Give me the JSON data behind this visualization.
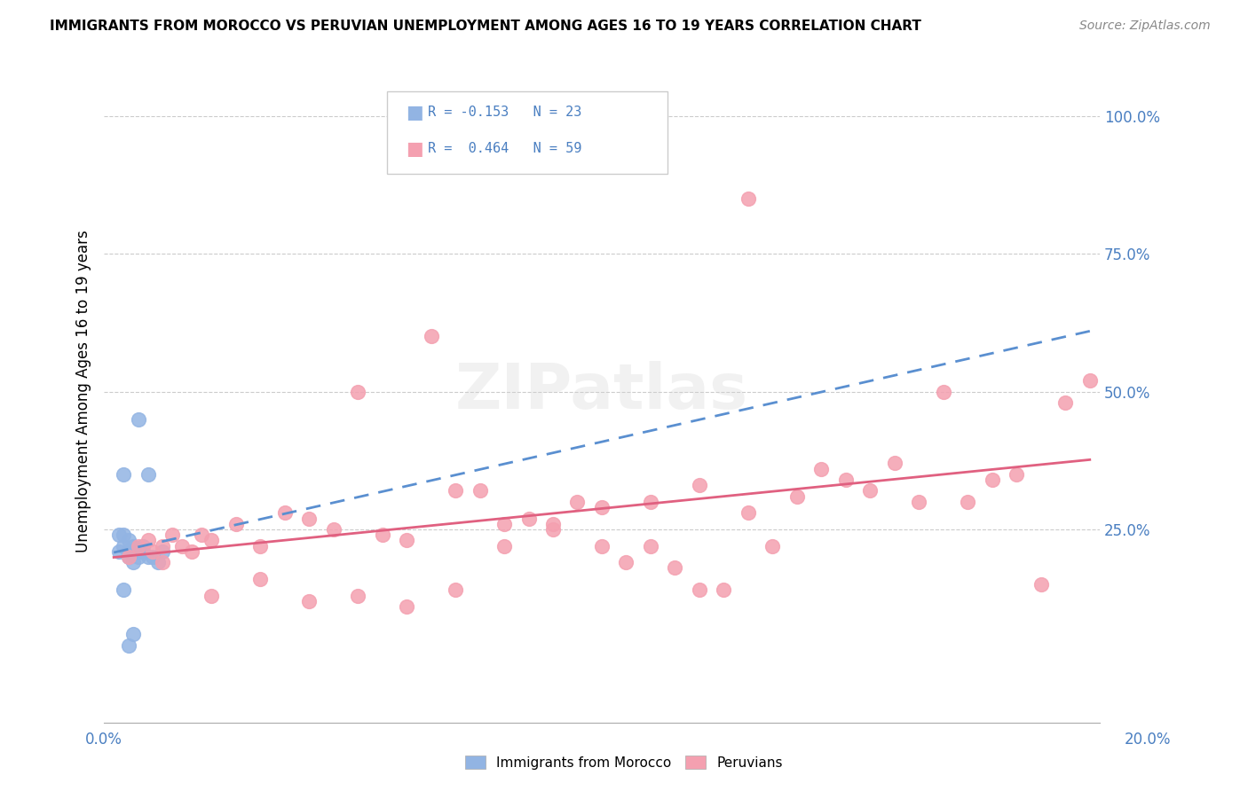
{
  "title": "IMMIGRANTS FROM MOROCCO VS PERUVIAN UNEMPLOYMENT AMONG AGES 16 TO 19 YEARS CORRELATION CHART",
  "source": "Source: ZipAtlas.com",
  "ylabel": "Unemployment Among Ages 16 to 19 years",
  "legend1_r": "-0.153",
  "legend1_n": "23",
  "legend2_r": "0.464",
  "legend2_n": "59",
  "color_blue": "#92b4e3",
  "color_pink": "#f4a0b0",
  "color_line_blue": "#5a8fd0",
  "color_line_pink": "#e06080",
  "background": "#ffffff",
  "morocco_x": [
    0.001,
    0.002,
    0.002,
    0.003,
    0.003,
    0.003,
    0.004,
    0.004,
    0.005,
    0.005,
    0.005,
    0.006,
    0.006,
    0.007,
    0.007,
    0.008,
    0.009,
    0.01,
    0.001,
    0.002,
    0.004,
    0.002,
    0.003
  ],
  "morocco_y": [
    0.21,
    0.22,
    0.24,
    0.2,
    0.23,
    0.21,
    0.22,
    0.19,
    0.21,
    0.2,
    0.45,
    0.22,
    0.21,
    0.2,
    0.35,
    0.2,
    0.19,
    0.21,
    0.24,
    0.35,
    0.06,
    0.14,
    0.04
  ],
  "peru_x": [
    0.003,
    0.005,
    0.007,
    0.008,
    0.01,
    0.012,
    0.014,
    0.016,
    0.018,
    0.02,
    0.025,
    0.03,
    0.035,
    0.04,
    0.045,
    0.05,
    0.055,
    0.06,
    0.065,
    0.07,
    0.075,
    0.08,
    0.085,
    0.09,
    0.095,
    0.1,
    0.105,
    0.11,
    0.115,
    0.12,
    0.125,
    0.13,
    0.135,
    0.14,
    0.145,
    0.15,
    0.155,
    0.16,
    0.165,
    0.17,
    0.175,
    0.18,
    0.185,
    0.19,
    0.195,
    0.2,
    0.13,
    0.01,
    0.02,
    0.03,
    0.04,
    0.05,
    0.06,
    0.07,
    0.08,
    0.09,
    0.1,
    0.11,
    0.12
  ],
  "peru_y": [
    0.2,
    0.22,
    0.23,
    0.21,
    0.22,
    0.24,
    0.22,
    0.21,
    0.24,
    0.23,
    0.26,
    0.22,
    0.28,
    0.27,
    0.25,
    0.5,
    0.24,
    0.23,
    0.6,
    0.32,
    0.32,
    0.26,
    0.27,
    0.26,
    0.3,
    0.22,
    0.19,
    0.22,
    0.18,
    0.14,
    0.14,
    0.28,
    0.22,
    0.31,
    0.36,
    0.34,
    0.32,
    0.37,
    0.3,
    0.5,
    0.3,
    0.34,
    0.35,
    0.15,
    0.48,
    0.52,
    0.85,
    0.19,
    0.13,
    0.16,
    0.12,
    0.13,
    0.11,
    0.14,
    0.22,
    0.25,
    0.29,
    0.3,
    0.33
  ],
  "yticks": [
    0.25,
    0.5,
    0.75,
    1.0
  ],
  "ytick_labels": [
    "25.0%",
    "50.0%",
    "75.0%",
    "100.0%"
  ],
  "xlim": [
    -0.002,
    0.202
  ],
  "ylim": [
    -0.1,
    1.1
  ]
}
